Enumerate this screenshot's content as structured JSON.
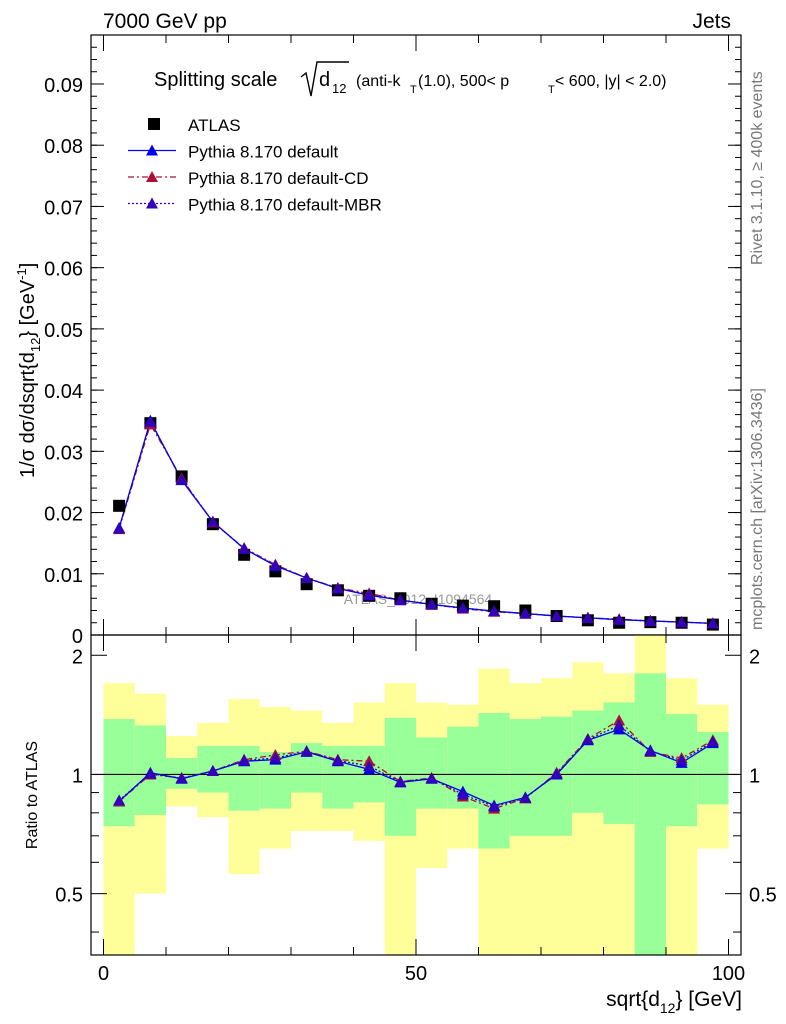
{
  "header": {
    "left": "7000 GeV pp",
    "right": "Jets"
  },
  "side_labels": {
    "rivet": "Rivet 3.1.10, ≥ 400k events",
    "mcplots": "mcplots.cern.ch [arXiv:1306.3436]"
  },
  "watermark": "ATLAS_2012_I1094564",
  "title": {
    "prefix": "Splitting scale",
    "var": "d",
    "var_sub": "12",
    "cuts_1": "(anti-k",
    "cuts_1_sub": "T",
    "cuts_2": "(1.0), 500< p",
    "cuts_2_sub": "T",
    "cuts_3": " < 600, |y| < 2.0)"
  },
  "colors": {
    "data": "#000000",
    "default": "#0000ee",
    "cd": "#aa1133",
    "mbr": "#3300bb",
    "band_inner": "#99ff99",
    "band_outer": "#ffff99"
  },
  "legend": [
    {
      "key": "data",
      "label": "ATLAS"
    },
    {
      "key": "default",
      "label": "Pythia 8.170 default"
    },
    {
      "key": "cd",
      "label": "Pythia 8.170 default-CD"
    },
    {
      "key": "mbr",
      "label": "Pythia 8.170 default-MBR"
    }
  ],
  "chart_data": [
    {
      "type": "scatter",
      "panel": "main",
      "ylabel": "1/σ dσ/dsqrt{d12} [GeV⁻¹]",
      "xlim": [
        -2,
        102
      ],
      "ylim": [
        0,
        0.098
      ],
      "y_ticks": [
        "0",
        "0.01",
        "0.02",
        "0.03",
        "0.04",
        "0.05",
        "0.06",
        "0.07",
        "0.08",
        "0.09"
      ],
      "x": [
        2.5,
        7.5,
        12.5,
        17.5,
        22.5,
        27.5,
        32.5,
        37.5,
        42.5,
        47.5,
        52.5,
        57.5,
        62.5,
        67.5,
        72.5,
        77.5,
        82.5,
        87.5,
        92.5,
        97.5
      ],
      "series": [
        {
          "name": "ATLAS",
          "values": [
            0.0211,
            0.0346,
            0.0259,
            0.0181,
            0.0131,
            0.0104,
            0.0083,
            0.0073,
            0.0064,
            0.006,
            0.0051,
            0.0048,
            0.0047,
            0.004,
            0.0031,
            0.0024,
            0.002,
            0.0021,
            0.002,
            0.0017
          ]
        },
        {
          "name": "Pythia 8.170 default",
          "values": [
            0.0175,
            0.035,
            0.0253,
            0.0185,
            0.0141,
            0.0113,
            0.0093,
            0.0076,
            0.0065,
            0.0057,
            0.005,
            0.0044,
            0.0039,
            0.0035,
            0.0031,
            0.0028,
            0.0025,
            0.0023,
            0.0021,
            0.0019
          ]
        },
        {
          "name": "Pythia 8.170 default-CD",
          "values": [
            0.0173,
            0.0344,
            0.0256,
            0.0184,
            0.0142,
            0.0115,
            0.0093,
            0.0077,
            0.0068,
            0.0057,
            0.005,
            0.0043,
            0.0038,
            0.0035,
            0.0031,
            0.0028,
            0.0026,
            0.0023,
            0.0021,
            0.0019
          ]
        },
        {
          "name": "Pythia 8.170 default-MBR",
          "values": [
            0.0174,
            0.0348,
            0.0254,
            0.0185,
            0.0141,
            0.0114,
            0.0093,
            0.0076,
            0.0066,
            0.0057,
            0.005,
            0.0044,
            0.0039,
            0.0035,
            0.0031,
            0.0028,
            0.0025,
            0.0023,
            0.0021,
            0.0019
          ]
        }
      ]
    },
    {
      "type": "line",
      "panel": "ratio",
      "ylabel": "Ratio to ATLAS",
      "xlabel": "sqrt{d12} [GeV]",
      "xlim": [
        -2,
        102
      ],
      "ylim": [
        0.35,
        2.25
      ],
      "y_ticks": [
        0.5,
        1,
        2
      ],
      "x_ticks": [
        0,
        50,
        100
      ],
      "bin_edges": [
        0,
        5,
        10,
        15,
        20,
        25,
        30,
        35,
        40,
        45,
        50,
        55,
        60,
        65,
        70,
        75,
        80,
        85,
        90,
        95,
        100
      ],
      "band_inner": {
        "lo": [
          0.74,
          0.79,
          0.92,
          0.9,
          0.81,
          0.82,
          0.9,
          0.82,
          0.85,
          0.7,
          0.82,
          0.82,
          0.65,
          0.7,
          0.7,
          0.8,
          0.75,
          0.35,
          0.74,
          0.84
        ],
        "hi": [
          1.38,
          1.33,
          1.1,
          1.18,
          1.18,
          1.14,
          1.2,
          1.18,
          1.18,
          1.39,
          1.24,
          1.32,
          1.43,
          1.38,
          1.4,
          1.45,
          1.52,
          1.8,
          1.42,
          1.28
        ]
      },
      "band_outer": {
        "lo": [
          0.35,
          0.5,
          0.83,
          0.78,
          0.56,
          0.65,
          0.72,
          0.72,
          0.68,
          0.35,
          0.58,
          0.65,
          0.35,
          0.35,
          0.35,
          0.35,
          0.35,
          0.35,
          0.35,
          0.65
        ],
        "hi": [
          1.7,
          1.6,
          1.25,
          1.35,
          1.55,
          1.48,
          1.45,
          1.35,
          1.52,
          1.7,
          1.52,
          1.5,
          1.85,
          1.7,
          1.75,
          1.92,
          1.8,
          2.25,
          1.75,
          1.5
        ]
      },
      "x": [
        2.5,
        7.5,
        12.5,
        17.5,
        22.5,
        27.5,
        32.5,
        37.5,
        42.5,
        47.5,
        52.5,
        57.5,
        62.5,
        67.5,
        72.5,
        77.5,
        82.5,
        87.5,
        92.5,
        97.5
      ],
      "series": [
        {
          "name": "Pythia 8.170 default",
          "values": [
            0.855,
            1.01,
            0.975,
            1.02,
            1.08,
            1.09,
            1.14,
            1.08,
            1.03,
            0.955,
            0.975,
            0.905,
            0.835,
            0.875,
            1.0,
            1.22,
            1.3,
            1.15,
            1.07,
            1.2
          ]
        },
        {
          "name": "Pythia 8.170 default-CD",
          "values": [
            0.855,
            1.0,
            0.98,
            1.02,
            1.09,
            1.12,
            1.145,
            1.09,
            1.08,
            0.96,
            0.98,
            0.88,
            0.82,
            0.87,
            1.01,
            1.23,
            1.37,
            1.14,
            1.1,
            1.22
          ]
        },
        {
          "name": "Pythia 8.170 default-MBR",
          "values": [
            0.86,
            1.005,
            0.978,
            1.02,
            1.085,
            1.1,
            1.143,
            1.085,
            1.05,
            0.958,
            0.978,
            0.89,
            0.83,
            0.873,
            1.005,
            1.225,
            1.33,
            1.145,
            1.085,
            1.21
          ]
        }
      ]
    }
  ]
}
